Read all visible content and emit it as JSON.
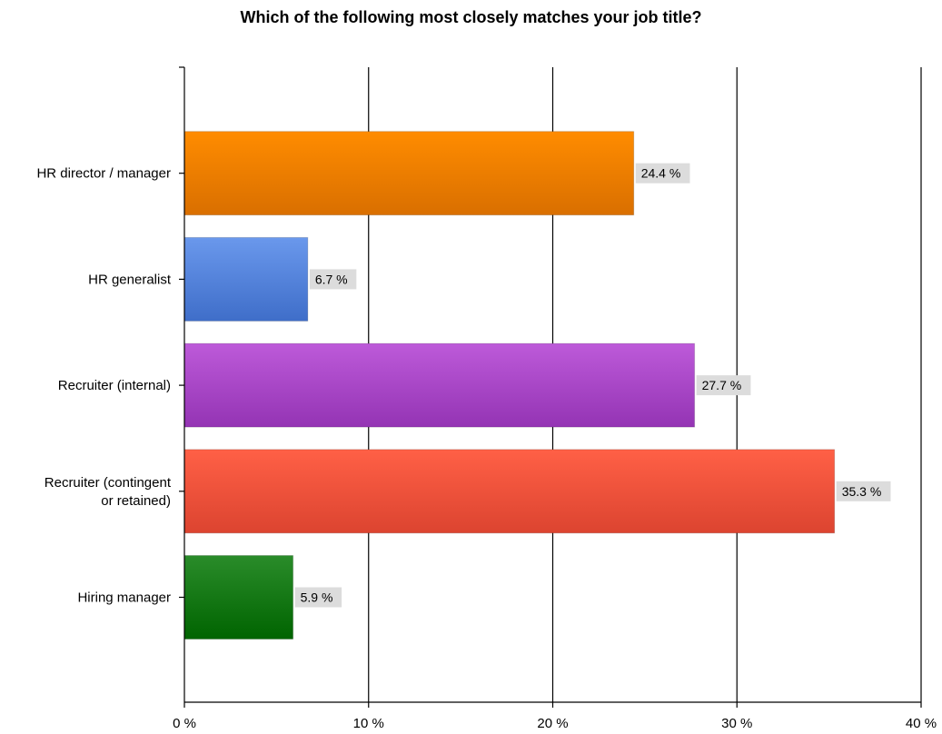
{
  "chart_data": {
    "type": "bar",
    "orientation": "horizontal",
    "title": "Which of the following most closely matches your job title?",
    "xlabel": "",
    "ylabel": "",
    "categories": [
      [
        "HR director / manager"
      ],
      [
        "HR generalist"
      ],
      [
        "Recruiter (internal)"
      ],
      [
        "Recruiter (contingent",
        "or retained)"
      ],
      [
        "Hiring manager"
      ]
    ],
    "values": [
      24.4,
      6.7,
      27.7,
      35.3,
      5.9
    ],
    "data_labels": [
      "24.4 %",
      "6.7 %",
      "27.7 %",
      "35.3 %",
      "5.9 %"
    ],
    "colors": [
      [
        "#ff8c00",
        "#d96f00"
      ],
      [
        "#6a98ec",
        "#3f6ec9"
      ],
      [
        "#bd5ad9",
        "#9434b4"
      ],
      [
        "#ff6046",
        "#dc4430"
      ],
      [
        "#2a8c2a",
        "#006400"
      ]
    ],
    "xlim": [
      0,
      40
    ],
    "x_ticks": [
      0,
      10,
      20,
      30,
      40
    ],
    "x_tick_labels": [
      "0 %",
      "10 %",
      "20 %",
      "30 %",
      "40 %"
    ],
    "grid": true,
    "legend": "none"
  }
}
